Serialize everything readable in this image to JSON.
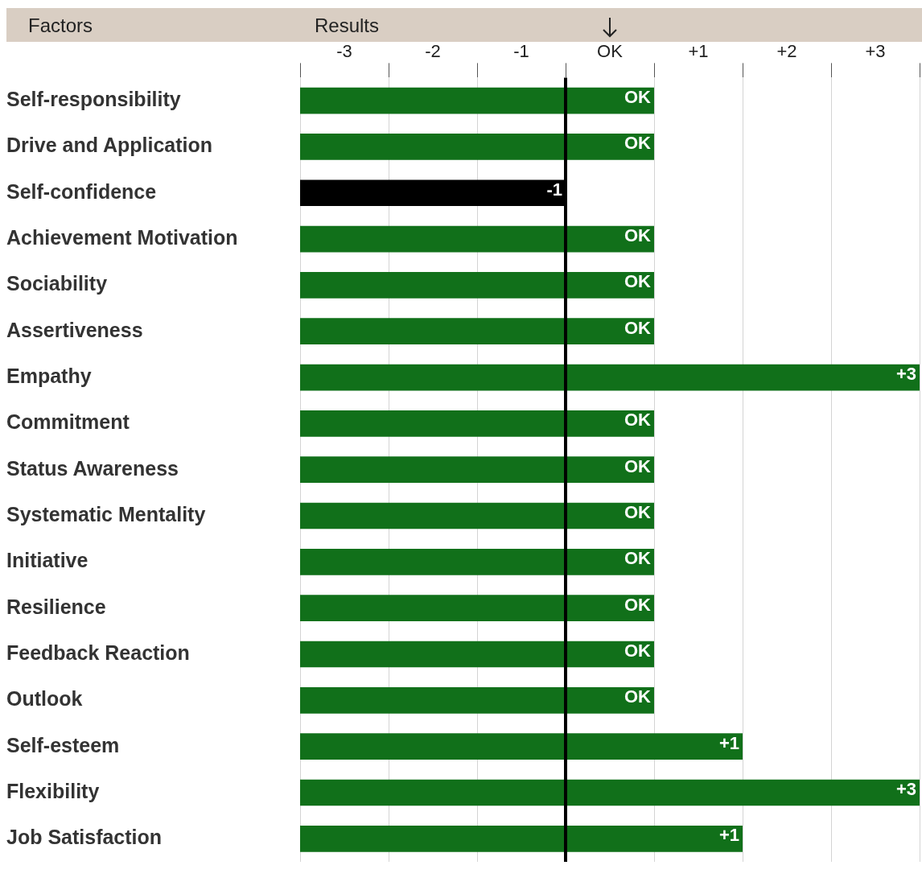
{
  "chart_data": {
    "type": "bar",
    "orientation": "horizontal",
    "xlabel": "Results",
    "ylabel": "Factors",
    "categories": [
      "Self-responsibility",
      "Drive and Application",
      "Self-confidence",
      "Achievement Motivation",
      "Sociability",
      "Assertiveness",
      "Empathy",
      "Commitment",
      "Status Awareness",
      "Systematic Mentality",
      "Initiative",
      "Resilience",
      "Feedback Reaction",
      "Outlook",
      "Self-esteem",
      "Flexibility",
      "Job Satisfaction"
    ],
    "base": [
      -3.5,
      -3.5,
      -3.5,
      -3.5,
      -3.5,
      -3.5,
      -3.5,
      -3.5,
      -3.5,
      -3.5,
      -3.5,
      -3.5,
      -3.5,
      -3.5,
      -3.5,
      -3.5,
      -3.5
    ],
    "values": [
      4,
      4,
      3,
      4,
      4,
      4,
      7,
      4,
      4,
      4,
      4,
      4,
      4,
      4,
      5,
      7,
      5
    ],
    "value_labels": [
      "OK",
      "OK",
      "-1",
      "OK",
      "OK",
      "OK",
      "+3",
      "OK",
      "OK",
      "OK",
      "OK",
      "OK",
      "OK",
      "OK",
      "+1",
      "+3",
      "+1"
    ],
    "colors": [
      "#11701a",
      "#11701a",
      "#000000",
      "#11701a",
      "#11701a",
      "#11701a",
      "#11701a",
      "#11701a",
      "#11701a",
      "#11701a",
      "#11701a",
      "#11701a",
      "#11701a",
      "#11701a",
      "#11701a",
      "#11701a",
      "#11701a"
    ],
    "xlim": [
      -3.5,
      3.5
    ],
    "xticks": [
      {
        "value": -3.5,
        "label": null
      },
      {
        "value": -3,
        "label": "-3"
      },
      {
        "value": -2.5,
        "label": null
      },
      {
        "value": -2,
        "label": "-2"
      },
      {
        "value": -1.5,
        "label": null
      },
      {
        "value": -1,
        "label": "-1"
      },
      {
        "value": -0.5,
        "label": null
      },
      {
        "value": 0,
        "label": "OK"
      },
      {
        "value": 0.5,
        "label": null
      },
      {
        "value": 1,
        "label": "+1"
      },
      {
        "value": 1.5,
        "label": null
      },
      {
        "value": 2,
        "label": "+2"
      },
      {
        "value": 2.5,
        "label": null
      },
      {
        "value": 3,
        "label": "+3"
      },
      {
        "value": 3.5,
        "label": null
      }
    ],
    "grid": "x",
    "legend": false,
    "ref_lines": [
      {
        "axis": "x",
        "value": -0.5,
        "color": "#000000"
      }
    ]
  }
}
